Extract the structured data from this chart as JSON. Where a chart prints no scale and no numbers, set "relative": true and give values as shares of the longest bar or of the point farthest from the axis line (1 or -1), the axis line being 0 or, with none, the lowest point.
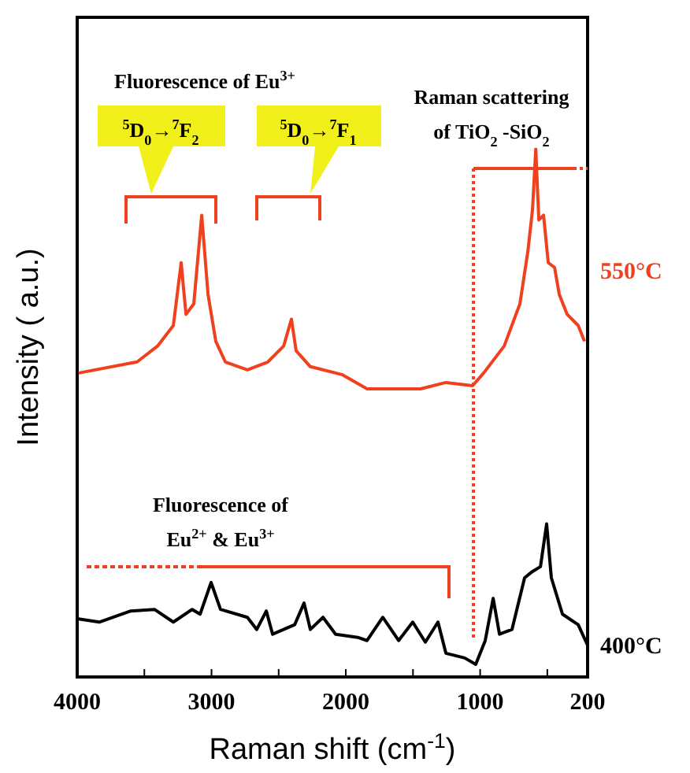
{
  "chart_data": {
    "type": "line",
    "xlabel": "Raman shift (cm$^{-1}$)",
    "ylabel": "Intensity ( a.u.)",
    "relative": true,
    "legend": false,
    "grid": false,
    "ref_lines": [
      {
        "axis": "x",
        "value": 1050,
        "color": "#f0401e",
        "line_style": "dotted"
      }
    ],
    "xlim": [
      4000,
      200
    ],
    "xticks": [
      4000,
      {
        "value": 3500,
        "label": null
      },
      3000,
      {
        "value": 2500,
        "label": null
      },
      2000,
      {
        "value": 1500,
        "label": null
      },
      1000,
      {
        "value": 500,
        "label": null
      },
      200
    ],
    "series": [
      {
        "name": "550°C",
        "color": "#f0401e",
        "x": [
          3990,
          3554,
          3402,
          3284,
          3226,
          3190,
          3132,
          3073,
          3026,
          2968,
          2897,
          2733,
          2580,
          2463,
          2405,
          2370,
          2264,
          2029,
          1842,
          1443,
          1255,
          1056,
          974,
          821,
          704,
          645,
          610,
          586,
          563,
          528,
          493,
          446,
          411,
          352,
          270,
          223
        ],
        "values": [
          0.576,
          0.597,
          0.627,
          0.666,
          0.785,
          0.687,
          0.707,
          0.875,
          0.725,
          0.636,
          0.597,
          0.582,
          0.597,
          0.627,
          0.678,
          0.618,
          0.588,
          0.573,
          0.546,
          0.546,
          0.558,
          0.552,
          0.576,
          0.627,
          0.707,
          0.806,
          0.886,
          1.0,
          0.866,
          0.875,
          0.785,
          0.776,
          0.725,
          0.687,
          0.666,
          0.636
        ]
      },
      {
        "name": "400°C",
        "color": "#000000",
        "x": [
          3990,
          3836,
          3601,
          3425,
          3284,
          3144,
          3085,
          3003,
          2933,
          2733,
          2663,
          2592,
          2545,
          2381,
          2311,
          2264,
          2170,
          2076,
          1912,
          1842,
          1725,
          1607,
          1502,
          1408,
          1314,
          1255,
          1115,
          1033,
          962,
          903,
          856,
          763,
          669,
          610,
          551,
          505,
          470,
          387,
          270,
          200
        ],
        "values": [
          0.11,
          0.104,
          0.125,
          0.128,
          0.104,
          0.128,
          0.119,
          0.179,
          0.128,
          0.113,
          0.09,
          0.125,
          0.081,
          0.099,
          0.14,
          0.09,
          0.113,
          0.081,
          0.075,
          0.069,
          0.113,
          0.069,
          0.104,
          0.066,
          0.104,
          0.045,
          0.036,
          0.024,
          0.069,
          0.149,
          0.081,
          0.09,
          0.188,
          0.2,
          0.209,
          0.29,
          0.188,
          0.119,
          0.099,
          0.06
        ]
      }
    ],
    "annotations": [
      "Fluorescence of Eu$^{3+}$",
      "$^{5}$D$_{0}$→$^{7}$F$_{2}$",
      "$^{5}$D$_{0}$→$^{7}$F$_{1}$",
      "Raman scattering",
      "of TiO$_{2}$ -SiO$_{2}$",
      "Fluorescence of",
      "Eu$^{2+}$ & Eu$^{3+}$"
    ]
  }
}
